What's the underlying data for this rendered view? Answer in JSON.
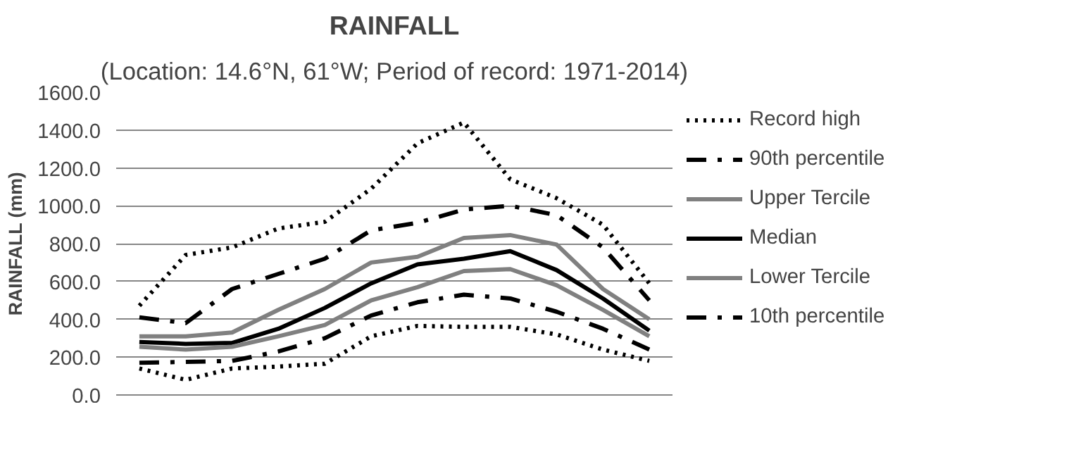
{
  "chart_data": {
    "type": "line",
    "title": "RAINFALL",
    "subtitle": "(Location: 14.6°N, 61°W; Period of record: 1971-2014)",
    "ylabel": "RAINFALL (mm)",
    "categories": [
      null,
      null,
      null,
      null,
      null,
      null,
      null,
      null,
      null,
      null,
      null,
      null
    ],
    "ylim": [
      0,
      1600
    ],
    "yticks": [
      {
        "value": 0,
        "label": "0.0"
      },
      {
        "value": 200,
        "label": "200.0"
      },
      {
        "value": 400,
        "label": "400.0"
      },
      {
        "value": 600,
        "label": "600.0"
      },
      {
        "value": 800,
        "label": "800.0"
      },
      {
        "value": 1000,
        "label": "1000.0"
      },
      {
        "value": 1200,
        "label": "1200.0"
      },
      {
        "value": 1400,
        "label": "1400.0"
      },
      {
        "value": 1600,
        "label": "1600.0"
      }
    ],
    "grid": "y",
    "legend": "right",
    "marker": "none",
    "series": [
      {
        "name": "Record high",
        "color": "#000000",
        "line_style": "dotted",
        "values": [
          472,
          740,
          780,
          880,
          915,
          1090,
          1330,
          1440,
          1140,
          1040,
          900,
          590
        ]
      },
      {
        "name": "90th percentile",
        "color": "#000000",
        "line_style": "dashdot",
        "values": [
          410,
          380,
          560,
          640,
          720,
          870,
          910,
          980,
          1000,
          950,
          780,
          500
        ]
      },
      {
        "name": "Upper Tercile",
        "color": "#808080",
        "line_style": "solid",
        "values": [
          310,
          310,
          330,
          450,
          560,
          700,
          730,
          830,
          845,
          795,
          560,
          400
        ]
      },
      {
        "name": "Median",
        "color": "#000000",
        "line_style": "solid",
        "values": [
          280,
          270,
          275,
          350,
          460,
          590,
          690,
          720,
          760,
          660,
          510,
          340
        ]
      },
      {
        "name": "Lower Tercile",
        "color": "#808080",
        "line_style": "solid",
        "values": [
          255,
          240,
          255,
          310,
          370,
          500,
          570,
          655,
          665,
          580,
          450,
          310
        ]
      },
      {
        "name": "10th percentile",
        "color": "#000000",
        "line_style": "dashdot",
        "values": [
          170,
          175,
          180,
          230,
          300,
          420,
          490,
          530,
          510,
          440,
          350,
          240
        ]
      },
      {
        "color": "#000000",
        "line_style": "dotted",
        "values": [
          140,
          80,
          140,
          150,
          165,
          310,
          365,
          360,
          360,
          320,
          240,
          180
        ]
      }
    ]
  }
}
